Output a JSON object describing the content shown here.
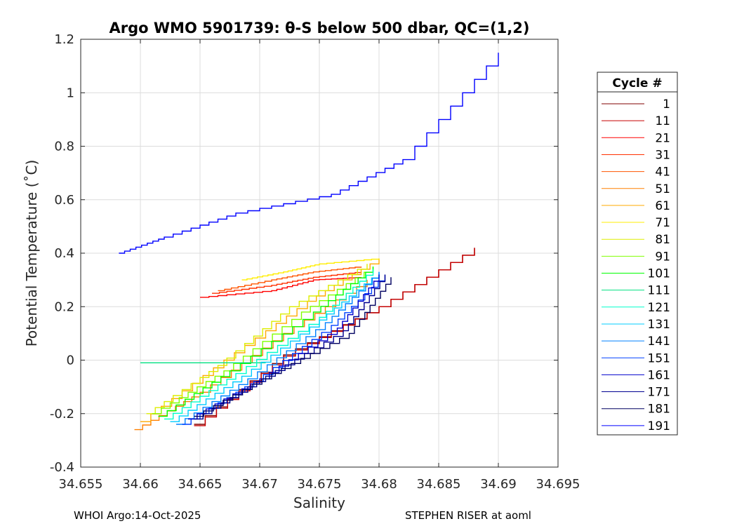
{
  "chart_data": {
    "type": "line",
    "title": "Argo WMO 5901739: θ-S below 500 dbar,  QC=(1,2)",
    "xlabel": "Salinity",
    "ylabel": "Potential Temperature (˚C)",
    "xlim": [
      34.655,
      34.695
    ],
    "ylim": [
      -0.4,
      1.2
    ],
    "xticks": [
      34.655,
      34.66,
      34.665,
      34.67,
      34.675,
      34.68,
      34.685,
      34.69,
      34.695
    ],
    "xtick_labels": [
      "34.655",
      "34.66",
      "34.665",
      "34.67",
      "34.675",
      "34.68",
      "34.685",
      "34.69",
      "34.695"
    ],
    "yticks": [
      -0.4,
      -0.2,
      0,
      0.2,
      0.4,
      0.6,
      0.8,
      1,
      1.2
    ],
    "ytick_labels": [
      "-0.4",
      "-0.2",
      "0",
      "0.2",
      "0.4",
      "0.6",
      "0.8",
      "1",
      "1.2"
    ],
    "grid": true,
    "legend_title": "Cycle #",
    "legend_position": "right, outside plot",
    "series": [
      {
        "name": "1",
        "color": "#800000",
        "x": [
          34.6645,
          34.672,
          34.68,
          34.688
        ],
        "y": [
          -0.24,
          0.02,
          0.2,
          0.42
        ]
      },
      {
        "name": "11",
        "color": "#c80000",
        "x": [
          34.6645,
          34.672,
          34.68,
          34.688
        ],
        "y": [
          -0.245,
          0.015,
          0.2,
          0.42
        ]
      },
      {
        "name": "21",
        "color": "#ff0000",
        "x": [
          34.665,
          34.671,
          34.6745,
          34.6785
        ],
        "y": [
          0.235,
          0.26,
          0.3,
          0.31
        ]
      },
      {
        "name": "31",
        "color": "#ff3000",
        "x": [
          34.666,
          34.671,
          34.6745,
          34.6785
        ],
        "y": [
          0.25,
          0.28,
          0.31,
          0.33
        ]
      },
      {
        "name": "41",
        "color": "#ff5500",
        "x": [
          34.6665,
          34.671,
          34.6745,
          34.6785
        ],
        "y": [
          0.26,
          0.3,
          0.33,
          0.35
        ]
      },
      {
        "name": "51",
        "color": "#ff8000",
        "x": [
          34.6595,
          34.665,
          34.672,
          34.679
        ],
        "y": [
          -0.26,
          -0.12,
          0.1,
          0.3
        ]
      },
      {
        "name": "61",
        "color": "#ffaa00",
        "x": [
          34.66,
          34.667,
          34.674,
          34.68
        ],
        "y": [
          -0.23,
          0.0,
          0.22,
          0.38
        ]
      },
      {
        "name": "71",
        "color": "#ffee00",
        "x": [
          34.6685,
          34.672,
          34.675,
          34.68
        ],
        "y": [
          0.3,
          0.33,
          0.36,
          0.38
        ]
      },
      {
        "name": "81",
        "color": "#ddee00",
        "x": [
          34.6605,
          34.6665,
          34.6725,
          34.679
        ],
        "y": [
          -0.2,
          -0.02,
          0.2,
          0.36
        ]
      },
      {
        "name": "91",
        "color": "#80ff00",
        "x": [
          34.661,
          34.667,
          34.6735,
          34.6795
        ],
        "y": [
          -0.2,
          -0.04,
          0.18,
          0.35
        ]
      },
      {
        "name": "101",
        "color": "#00ff00",
        "x": [
          34.6615,
          34.6675,
          34.6745,
          34.6795
        ],
        "y": [
          -0.21,
          -0.04,
          0.18,
          0.35
        ]
      },
      {
        "name": "111",
        "color": "#00e080",
        "x": [
          34.66,
          34.666,
          34.6705
        ],
        "y": [
          -0.01,
          -0.01,
          -0.01
        ]
      },
      {
        "name": "121",
        "color": "#00ffcc",
        "x": [
          34.662,
          34.668,
          34.675,
          34.6795
        ],
        "y": [
          -0.22,
          -0.05,
          0.16,
          0.34
        ]
      },
      {
        "name": "131",
        "color": "#00ccff",
        "x": [
          34.6625,
          34.6685,
          34.675,
          34.68
        ],
        "y": [
          -0.23,
          -0.06,
          0.15,
          0.33
        ]
      },
      {
        "name": "141",
        "color": "#0080ff",
        "x": [
          34.663,
          34.669,
          34.6755,
          34.68
        ],
        "y": [
          -0.24,
          -0.07,
          0.14,
          0.33
        ]
      },
      {
        "name": "151",
        "color": "#0040ff",
        "x": [
          34.6635,
          34.6695,
          34.676,
          34.6805
        ],
        "y": [
          -0.24,
          -0.08,
          0.13,
          0.32
        ]
      },
      {
        "name": "161",
        "color": "#0000cc",
        "x": [
          34.664,
          34.67,
          34.6765,
          34.68
        ],
        "y": [
          -0.22,
          -0.07,
          0.12,
          0.32
        ]
      },
      {
        "name": "171",
        "color": "#000090",
        "x": [
          34.6645,
          34.6705,
          34.677,
          34.6805
        ],
        "y": [
          -0.22,
          -0.06,
          0.11,
          0.32
        ]
      },
      {
        "name": "181",
        "color": "#000060",
        "x": [
          34.6645,
          34.671,
          34.6775,
          34.681
        ],
        "y": [
          -0.21,
          -0.05,
          0.1,
          0.31
        ]
      },
      {
        "name": "191",
        "color": "#0000ff",
        "x": [
          34.6582,
          34.662,
          34.668,
          34.676,
          34.682,
          34.69
        ],
        "y": [
          0.4,
          0.46,
          0.55,
          0.62,
          0.75,
          1.15
        ]
      }
    ]
  },
  "footer": {
    "left": "WHOI Argo:14-Oct-2025",
    "right": "STEPHEN RISER at aoml"
  }
}
